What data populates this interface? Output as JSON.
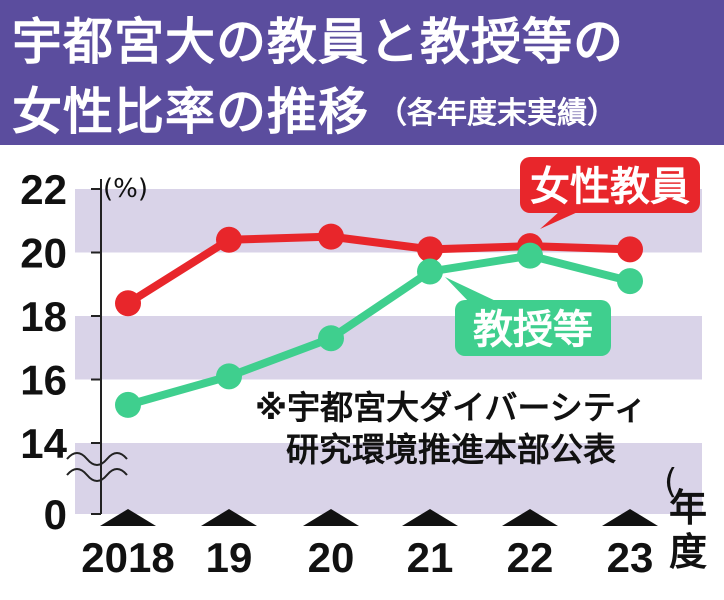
{
  "title": {
    "line1": "宇都宮大の教員と教授等の",
    "line2": "女性比率の推移",
    "note": "（各年度末実績）"
  },
  "source_note": {
    "line1": "※宇都宮大ダイバーシティ",
    "line2": "研究環境推進本部公表"
  },
  "colors": {
    "title_bg": "#5b4d9e",
    "band": "#d9d3e8",
    "female_faculty": "#e8262b",
    "professors": "#3fcf8e"
  },
  "chart_data": {
    "type": "line",
    "x": [
      "2018",
      "19",
      "20",
      "21",
      "22",
      "23"
    ],
    "xlabel": "年度",
    "ylabel": "(%)",
    "yticks": [
      0,
      14,
      16,
      18,
      20,
      22
    ],
    "ylim": [
      14,
      22
    ],
    "axis_break": true,
    "grid": true,
    "series": [
      {
        "name": "女性教員",
        "values": [
          18.4,
          20.4,
          20.5,
          20.1,
          20.2,
          20.1
        ]
      },
      {
        "name": "教授等",
        "values": [
          15.2,
          16.1,
          17.3,
          19.4,
          19.9,
          19.1
        ]
      }
    ]
  }
}
